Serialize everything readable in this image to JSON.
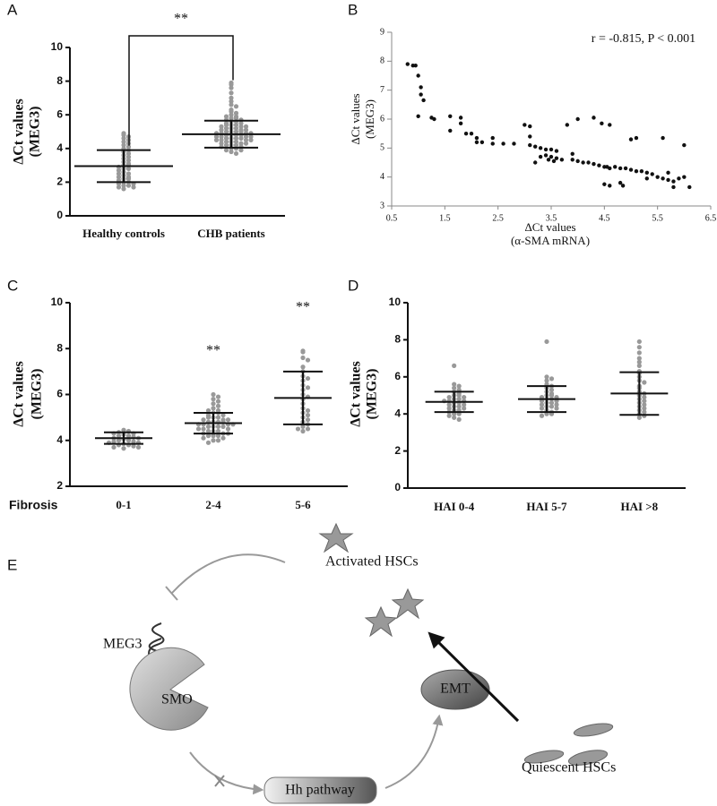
{
  "chart_data": [
    {
      "panel": "A",
      "type": "dotplot",
      "ylabel": [
        "ΔCt values",
        "(MEG3)"
      ],
      "ylim": [
        0,
        10
      ],
      "yticks": [
        0,
        2,
        4,
        6,
        8,
        10
      ],
      "categories": [
        "Healthy controls",
        "CHB patients"
      ],
      "color": "#999999",
      "bracket_label": "**",
      "groups": [
        {
          "mean": 2.95,
          "sd": 0.95,
          "values": [
            4.9,
            4.8,
            4.7,
            4.6,
            4.5,
            4.4,
            4.3,
            4.2,
            4.1,
            4.0,
            3.9,
            3.8,
            3.7,
            3.6,
            3.5,
            3.4,
            3.3,
            3.2,
            3.1,
            3.0,
            3.0,
            2.9,
            2.8,
            2.8,
            2.7,
            2.6,
            2.5,
            2.5,
            2.4,
            2.3,
            2.3,
            2.2,
            2.2,
            2.1,
            2.0,
            2.0,
            1.9,
            1.9,
            1.8,
            1.8,
            1.7,
            1.7,
            1.6
          ]
        },
        {
          "mean": 4.85,
          "sd": 0.8,
          "values": [
            7.9,
            7.8,
            7.6,
            7.3,
            7.0,
            6.8,
            6.6,
            6.5,
            6.3,
            6.2,
            6.1,
            6.0,
            5.9,
            5.9,
            5.8,
            5.8,
            5.7,
            5.7,
            5.6,
            5.6,
            5.5,
            5.5,
            5.4,
            5.4,
            5.4,
            5.3,
            5.3,
            5.3,
            5.2,
            5.2,
            5.2,
            5.1,
            5.1,
            5.1,
            5.0,
            5.0,
            5.0,
            5.0,
            4.9,
            4.9,
            4.9,
            4.9,
            4.8,
            4.8,
            4.8,
            4.8,
            4.7,
            4.7,
            4.7,
            4.7,
            4.6,
            4.6,
            4.6,
            4.6,
            4.5,
            4.5,
            4.5,
            4.5,
            4.4,
            4.4,
            4.4,
            4.3,
            4.3,
            4.3,
            4.2,
            4.2,
            4.2,
            4.1,
            4.1,
            4.0,
            4.0,
            3.9,
            3.9,
            3.8,
            3.7
          ]
        }
      ]
    },
    {
      "panel": "B",
      "type": "scatter",
      "ylabel": [
        "ΔCt values",
        "(MEG3)"
      ],
      "xlabel": [
        "ΔCt values",
        "(α-SMA mRNA)"
      ],
      "annotation": "r = -0.815, P < 0.001",
      "color": "#111111",
      "xlim": [
        0.5,
        6.5
      ],
      "xticks": [
        0.5,
        1.5,
        2.5,
        3.5,
        4.5,
        5.5,
        6.5
      ],
      "ylim": [
        3,
        9
      ],
      "yticks": [
        3,
        4,
        5,
        6,
        7,
        8,
        9
      ],
      "x": [
        0.8,
        0.9,
        0.95,
        1.0,
        1.05,
        1.05,
        1.1,
        1.0,
        1.25,
        1.3,
        1.6,
        1.6,
        1.8,
        1.8,
        1.9,
        2.0,
        2.1,
        2.1,
        2.2,
        2.4,
        2.4,
        2.6,
        2.8,
        3.0,
        3.1,
        3.1,
        3.1,
        3.2,
        3.2,
        3.3,
        3.3,
        3.4,
        3.4,
        3.45,
        3.5,
        3.5,
        3.55,
        3.6,
        3.6,
        3.7,
        3.8,
        3.9,
        3.9,
        4.0,
        4.0,
        4.1,
        4.2,
        4.3,
        4.3,
        4.4,
        4.45,
        4.5,
        4.5,
        4.55,
        4.6,
        4.6,
        4.6,
        4.7,
        4.8,
        4.8,
        4.85,
        4.9,
        5.0,
        5.0,
        5.1,
        5.1,
        5.2,
        5.3,
        5.3,
        5.4,
        5.5,
        5.6,
        5.6,
        5.7,
        5.7,
        5.8,
        5.8,
        5.9,
        6.0,
        6.0,
        6.1
      ],
      "y": [
        7.9,
        7.85,
        7.85,
        7.5,
        7.1,
        6.85,
        6.65,
        6.1,
        6.05,
        6.0,
        6.1,
        5.6,
        6.05,
        5.85,
        5.5,
        5.5,
        5.35,
        5.2,
        5.2,
        5.35,
        5.15,
        5.15,
        5.15,
        5.8,
        5.75,
        5.4,
        5.1,
        4.5,
        5.05,
        5.0,
        4.7,
        4.95,
        4.75,
        4.6,
        4.95,
        4.7,
        4.55,
        4.9,
        4.65,
        4.6,
        5.8,
        4.8,
        4.6,
        6.0,
        4.55,
        4.5,
        4.5,
        6.05,
        4.45,
        4.4,
        5.85,
        4.35,
        3.75,
        4.35,
        3.7,
        5.8,
        4.3,
        4.35,
        4.3,
        3.8,
        3.7,
        4.3,
        4.25,
        5.3,
        4.2,
        5.35,
        4.2,
        4.15,
        3.95,
        4.1,
        4.0,
        3.95,
        5.35,
        3.9,
        4.15,
        3.65,
        3.85,
        3.95,
        5.1,
        4.0,
        3.65
      ]
    },
    {
      "panel": "C",
      "type": "dotplot",
      "ylabel": [
        "ΔCt values",
        "(MEG3)"
      ],
      "ylim": [
        2,
        10
      ],
      "yticks": [
        2,
        4,
        6,
        8,
        10
      ],
      "categories": [
        "0-1",
        "2-4",
        "5-6"
      ],
      "x_axis_title": "Fibrosis",
      "color": "#999999",
      "groups": [
        {
          "mean": 4.1,
          "sd": 0.25,
          "values": [
            4.45,
            4.4,
            4.35,
            4.3,
            4.3,
            4.25,
            4.2,
            4.2,
            4.15,
            4.1,
            4.1,
            4.05,
            4.0,
            4.0,
            3.95,
            3.95,
            3.9,
            3.9,
            3.85,
            3.8,
            3.8,
            3.75,
            3.7,
            3.7,
            3.65
          ]
        },
        {
          "mean": 4.75,
          "sd": 0.45,
          "annotation": "**",
          "values": [
            6.0,
            5.9,
            5.8,
            5.7,
            5.6,
            5.5,
            5.4,
            5.3,
            5.3,
            5.2,
            5.2,
            5.1,
            5.1,
            5.0,
            5.0,
            5.0,
            4.9,
            4.9,
            4.9,
            4.8,
            4.8,
            4.8,
            4.8,
            4.7,
            4.7,
            4.7,
            4.7,
            4.6,
            4.6,
            4.6,
            4.6,
            4.5,
            4.5,
            4.5,
            4.4,
            4.4,
            4.4,
            4.3,
            4.3,
            4.3,
            4.2,
            4.2,
            4.2,
            4.1,
            4.1,
            4.0,
            4.0,
            3.9
          ]
        },
        {
          "mean": 5.85,
          "sd": 1.15,
          "annotation": "**",
          "values": [
            7.9,
            7.85,
            7.6,
            7.5,
            7.2,
            7.0,
            6.8,
            6.7,
            6.6,
            6.4,
            6.3,
            6.2,
            6.0,
            5.9,
            5.8,
            5.6,
            5.4,
            5.3,
            5.2,
            5.1,
            5.0,
            4.9,
            4.8,
            4.7,
            4.6,
            4.5,
            4.5,
            4.4
          ]
        }
      ]
    },
    {
      "panel": "D",
      "type": "dotplot",
      "ylabel": [
        "ΔCt values",
        "(MEG3)"
      ],
      "ylim": [
        0,
        10
      ],
      "yticks": [
        0,
        2,
        4,
        6,
        8,
        10
      ],
      "categories": [
        "HAI 0-4",
        "HAI 5-7",
        "HAI >8"
      ],
      "color": "#999999",
      "groups": [
        {
          "mean": 4.65,
          "sd": 0.55,
          "values": [
            6.6,
            5.6,
            5.5,
            5.4,
            5.3,
            5.2,
            5.1,
            5.0,
            5.0,
            4.9,
            4.9,
            4.8,
            4.8,
            4.7,
            4.7,
            4.7,
            4.6,
            4.6,
            4.5,
            4.5,
            4.4,
            4.4,
            4.3,
            4.3,
            4.2,
            4.2,
            4.1,
            4.0,
            4.0,
            3.9,
            3.8,
            3.7
          ]
        },
        {
          "mean": 4.8,
          "sd": 0.7,
          "values": [
            7.9,
            6.0,
            5.9,
            5.8,
            5.6,
            5.5,
            5.4,
            5.3,
            5.2,
            5.1,
            5.0,
            5.0,
            4.9,
            4.9,
            4.8,
            4.8,
            4.7,
            4.7,
            4.6,
            4.6,
            4.5,
            4.5,
            4.4,
            4.4,
            4.3,
            4.3,
            4.2,
            4.1,
            4.0,
            4.0,
            3.9
          ]
        },
        {
          "mean": 5.1,
          "sd": 1.15,
          "values": [
            7.9,
            7.6,
            7.3,
            7.0,
            6.8,
            6.6,
            6.3,
            6.2,
            6.0,
            5.8,
            5.7,
            5.5,
            5.4,
            5.2,
            5.1,
            5.0,
            4.9,
            4.8,
            4.7,
            4.6,
            4.5,
            4.4,
            4.3,
            4.2,
            4.1,
            4.0,
            3.9,
            3.8
          ]
        }
      ]
    }
  ],
  "diagram": {
    "panel": "E",
    "activated": "Activated HSCs",
    "meg3": "MEG3",
    "smo": "SMO",
    "emt": "EMT",
    "hh": "Hh pathway",
    "quiescent": "Quiescent HSCs"
  }
}
